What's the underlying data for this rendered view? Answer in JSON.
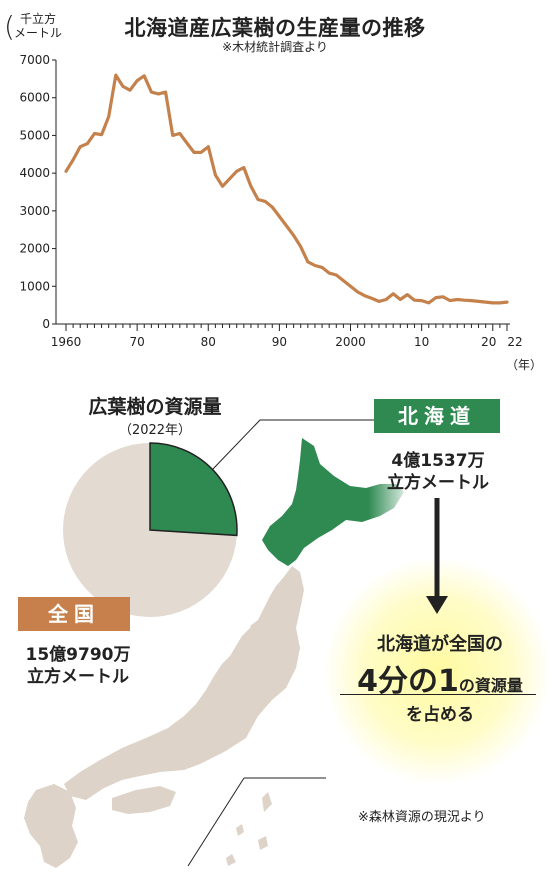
{
  "header": {
    "title": "北海道産広葉樹の生産量の推移",
    "source": "※木材統計調査より",
    "y_unit": [
      "千立方",
      "メートル"
    ],
    "x_unit": "（年）"
  },
  "chart_data": [
    {
      "type": "line",
      "title": "北海道産広葉樹の生産量の推移",
      "xlabel": "（年）",
      "ylabel": "千立方メートル",
      "ylim": [
        0,
        7000
      ],
      "xlim": [
        1958,
        2024
      ],
      "y_ticks": [
        0,
        1000,
        2000,
        3000,
        4000,
        5000,
        6000,
        7000
      ],
      "x_tick_labels": [
        {
          "x": 1960,
          "label": "1960"
        },
        {
          "x": 1970,
          "label": "70"
        },
        {
          "x": 1980,
          "label": "80"
        },
        {
          "x": 1990,
          "label": "90"
        },
        {
          "x": 2000,
          "label": "2000"
        },
        {
          "x": 2010,
          "label": "10"
        },
        {
          "x": 2020,
          "label": "20"
        },
        {
          "x": 2022,
          "label": "22"
        }
      ],
      "color": "#c4814c",
      "x": [
        1960,
        1961,
        1962,
        1963,
        1964,
        1965,
        1966,
        1967,
        1968,
        1969,
        1970,
        1971,
        1972,
        1973,
        1974,
        1975,
        1976,
        1977,
        1978,
        1979,
        1980,
        1981,
        1982,
        1983,
        1984,
        1985,
        1986,
        1987,
        1988,
        1989,
        1990,
        1991,
        1992,
        1993,
        1994,
        1995,
        1996,
        1997,
        1998,
        1999,
        2000,
        2001,
        2002,
        2003,
        2004,
        2005,
        2006,
        2007,
        2008,
        2009,
        2010,
        2011,
        2012,
        2013,
        2014,
        2015,
        2016,
        2017,
        2018,
        2019,
        2020,
        2021,
        2022
      ],
      "y": [
        4050,
        4350,
        4700,
        4780,
        5050,
        5020,
        5500,
        6600,
        6300,
        6200,
        6450,
        6580,
        6150,
        6100,
        6150,
        5000,
        5050,
        4800,
        4550,
        4550,
        4700,
        3950,
        3650,
        3850,
        4050,
        4150,
        3650,
        3300,
        3250,
        3100,
        2850,
        2600,
        2350,
        2050,
        1650,
        1550,
        1500,
        1350,
        1300,
        1150,
        1000,
        850,
        750,
        680,
        600,
        650,
        800,
        650,
        780,
        630,
        620,
        560,
        700,
        720,
        620,
        650,
        630,
        620,
        600,
        580,
        560,
        560,
        580
      ]
    },
    {
      "type": "pie",
      "title": "広葉樹の資源量",
      "subtitle": "（2022年）",
      "slices": [
        {
          "name": "北海道",
          "value": 41537
        },
        {
          "name": "全国（北海道以外）",
          "value": 118253
        }
      ],
      "colors": [
        "#2f8a52",
        "#e3dbd2"
      ]
    }
  ],
  "pie_section": {
    "title": "広葉樹の資源量",
    "year": "（2022年）"
  },
  "hokkaido": {
    "label": "北海道",
    "value_line1": "4億1537万",
    "value_line2": "立方メートル",
    "color": "#2f8a52"
  },
  "zenkoku": {
    "label": "全国",
    "value_line1": "15億9790万",
    "value_line2": "立方メートル",
    "color": "#c7804b"
  },
  "message": {
    "line1": "北海道が全国の",
    "big": "4分の1",
    "small": "の資源量",
    "line3": "を占める"
  },
  "footer": {
    "source": "※森林資源の現況より"
  }
}
